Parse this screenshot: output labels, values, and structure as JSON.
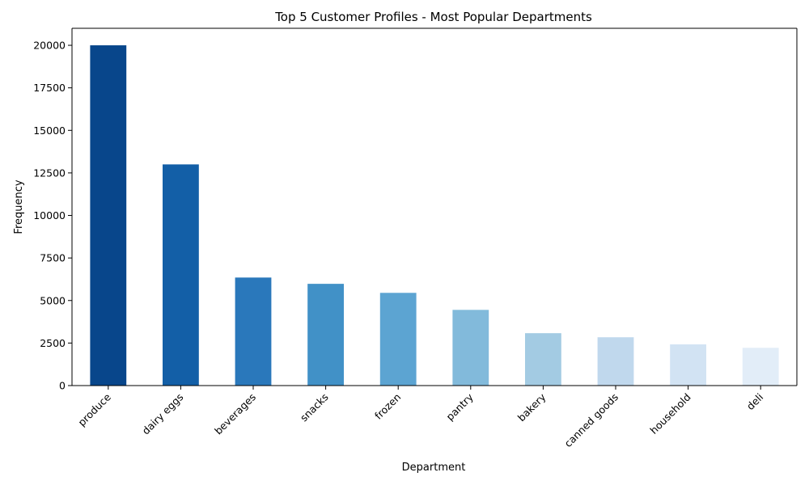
{
  "chart_data": {
    "type": "bar",
    "title": "Top 5 Customer Profiles - Most Popular Departments",
    "xlabel": "Department",
    "ylabel": "Frequency",
    "categories": [
      "produce",
      "dairy eggs",
      "beverages",
      "snacks",
      "frozen",
      "pantry",
      "bakery",
      "canned goods",
      "household",
      "deli"
    ],
    "values": [
      20000,
      13000,
      6350,
      5980,
      5450,
      4450,
      3080,
      2840,
      2420,
      2220
    ],
    "ylim": [
      0,
      21000
    ],
    "yticks": [
      0,
      2500,
      5000,
      7500,
      10000,
      12500,
      15000,
      17500,
      20000
    ],
    "colors": [
      "#08468b",
      "#135fa7",
      "#2a78bb",
      "#4191c7",
      "#5ca4d2",
      "#82badb",
      "#a3cbe3",
      "#c0d8ed",
      "#d2e3f3",
      "#e2edf8"
    ],
    "grid": false,
    "legend": "none"
  }
}
